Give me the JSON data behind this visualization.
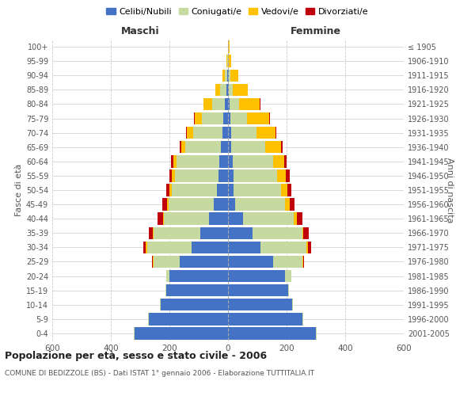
{
  "age_groups": [
    "0-4",
    "5-9",
    "10-14",
    "15-19",
    "20-24",
    "25-29",
    "30-34",
    "35-39",
    "40-44",
    "45-49",
    "50-54",
    "55-59",
    "60-64",
    "65-69",
    "70-74",
    "75-79",
    "80-84",
    "85-89",
    "90-94",
    "95-99",
    "100+"
  ],
  "birth_years": [
    "2001-2005",
    "1996-2000",
    "1991-1995",
    "1986-1990",
    "1981-1985",
    "1976-1980",
    "1971-1975",
    "1966-1970",
    "1961-1965",
    "1956-1960",
    "1951-1955",
    "1946-1950",
    "1941-1945",
    "1936-1940",
    "1931-1935",
    "1926-1930",
    "1921-1925",
    "1916-1920",
    "1911-1915",
    "1906-1910",
    "≤ 1905"
  ],
  "male_celibi": [
    320,
    270,
    230,
    210,
    200,
    165,
    125,
    95,
    65,
    48,
    38,
    32,
    30,
    25,
    20,
    16,
    10,
    6,
    4,
    1,
    0
  ],
  "male_coniugati": [
    2,
    2,
    2,
    3,
    10,
    90,
    150,
    160,
    155,
    155,
    155,
    150,
    145,
    120,
    100,
    72,
    45,
    20,
    8,
    2,
    0
  ],
  "male_vedovi": [
    0,
    0,
    0,
    0,
    0,
    2,
    5,
    3,
    2,
    5,
    7,
    9,
    12,
    15,
    20,
    25,
    28,
    18,
    8,
    2,
    0
  ],
  "male_divorziati": [
    0,
    0,
    0,
    0,
    0,
    2,
    8,
    12,
    18,
    15,
    12,
    10,
    8,
    5,
    3,
    2,
    2,
    0,
    0,
    0,
    0
  ],
  "female_celibi": [
    300,
    255,
    220,
    205,
    195,
    155,
    110,
    85,
    50,
    25,
    20,
    18,
    15,
    12,
    10,
    8,
    5,
    3,
    2,
    0,
    0
  ],
  "female_coniugati": [
    2,
    2,
    2,
    3,
    22,
    100,
    158,
    168,
    175,
    170,
    160,
    150,
    138,
    115,
    88,
    58,
    32,
    12,
    5,
    1,
    0
  ],
  "female_vedovi": [
    0,
    0,
    0,
    0,
    0,
    2,
    5,
    5,
    10,
    15,
    22,
    30,
    40,
    55,
    65,
    75,
    72,
    52,
    28,
    10,
    5
  ],
  "female_divorziati": [
    0,
    0,
    0,
    0,
    0,
    2,
    12,
    18,
    18,
    18,
    15,
    12,
    8,
    5,
    3,
    2,
    2,
    0,
    0,
    0,
    0
  ],
  "colors": {
    "celibi": "#4472C4",
    "coniugati": "#C5D9A0",
    "vedovi": "#FFC000",
    "divorziati": "#C0000C"
  },
  "title": "Popolazione per età, sesso e stato civile - 2006",
  "subtitle": "COMUNE DI BEDIZZOLE (BS) - Dati ISTAT 1° gennaio 2006 - Elaborazione TUTTITALIA.IT",
  "xlabel_left": "Maschi",
  "xlabel_right": "Femmine",
  "ylabel_left": "Fasce di età",
  "ylabel_right": "Anni di nascita",
  "xlim": 600,
  "background_color": "#ffffff",
  "grid_color": "#cccccc"
}
